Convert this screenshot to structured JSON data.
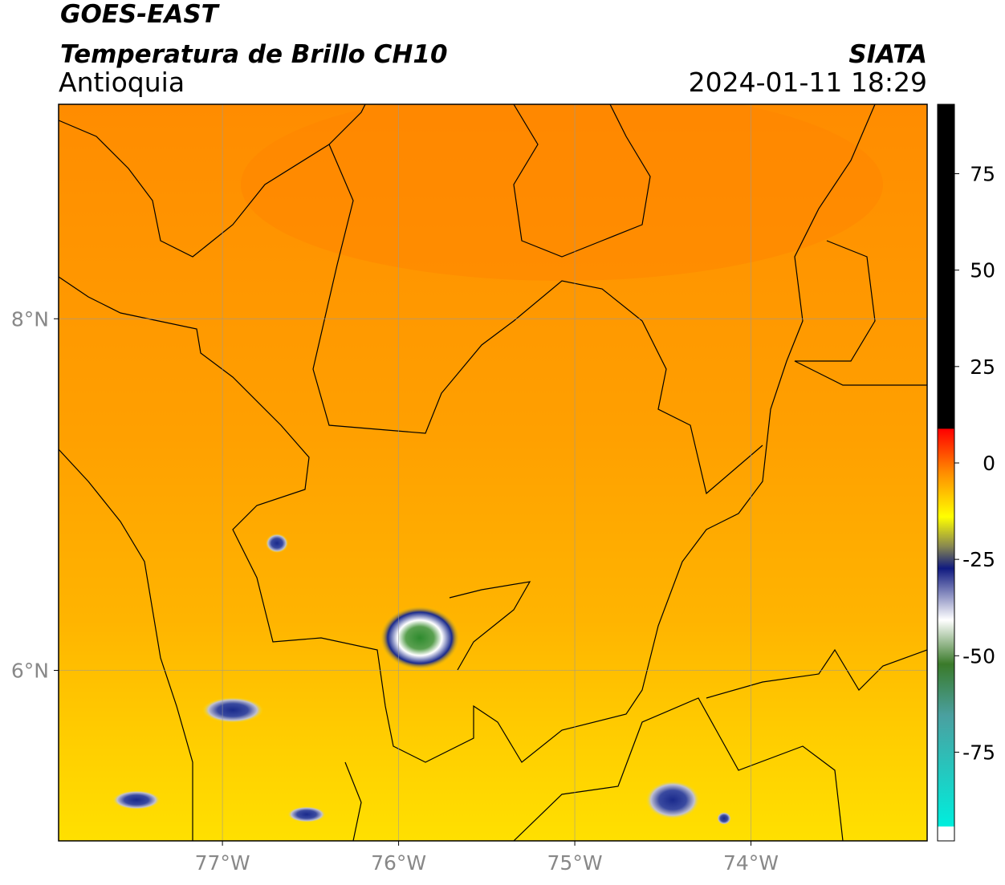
{
  "header": {
    "title": "GOES-EAST",
    "subtitle": "Temperatura de Brillo CH10",
    "region": "Antioquia",
    "source": "SIATA",
    "timestamp": "2024-01-11 18:29"
  },
  "map": {
    "lonlim": [
      -77.93,
      -73.0
    ],
    "latlim": [
      5.03,
      9.22
    ],
    "lonticks": [
      {
        "value": -77,
        "label": "77°W"
      },
      {
        "value": -76,
        "label": "76°W"
      },
      {
        "value": -75,
        "label": "75°W"
      },
      {
        "value": -74,
        "label": "74°W"
      }
    ],
    "latticks": [
      {
        "value": 8,
        "label": "8°N"
      },
      {
        "value": 6,
        "label": "6°N"
      }
    ]
  },
  "colorbar": {
    "lim": [
      -98,
      93
    ],
    "ticks": [
      75,
      50,
      25,
      0,
      -25,
      -50,
      -75
    ]
  }
}
